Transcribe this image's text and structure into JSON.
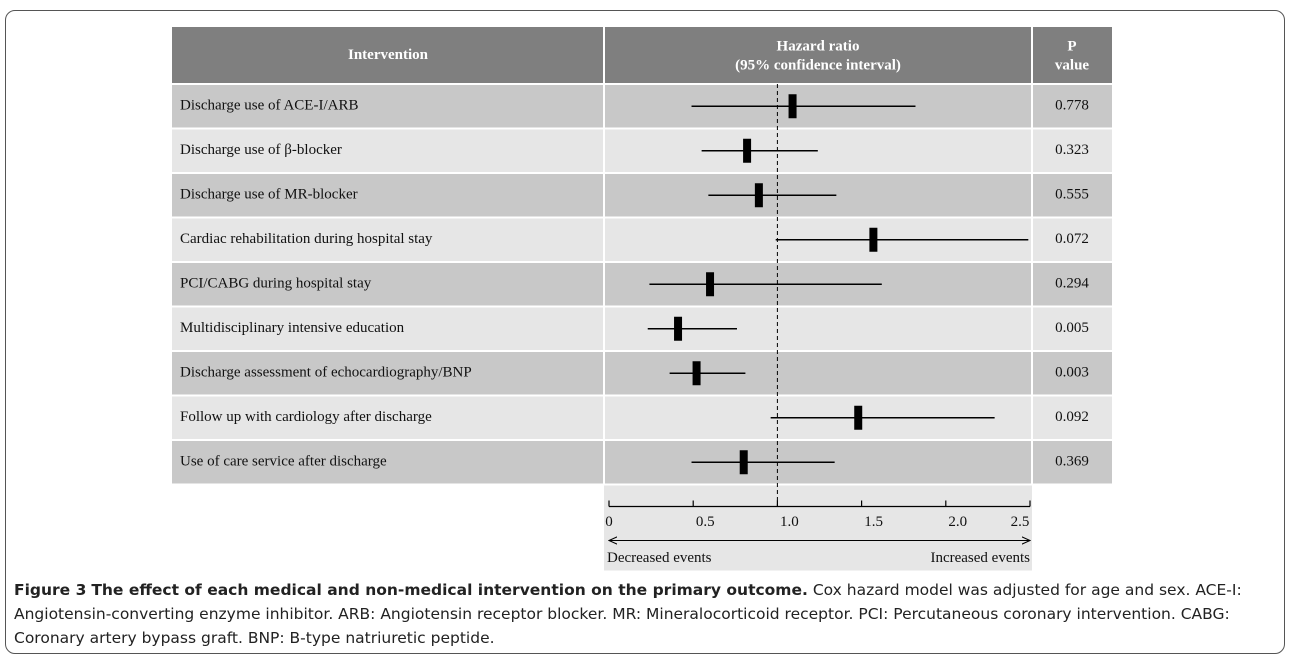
{
  "chart_data": {
    "type": "forest",
    "headers": [
      "Intervention",
      "Hazard ratio",
      "(95% confidence interval)",
      "P",
      "value"
    ],
    "categories": [
      "Discharge use of ACE-I/ARB",
      "Discharge use of β-blocker",
      "Discharge use of MR-blocker",
      "Cardiac rehabilitation during hospital stay",
      "PCI/CABG during hospital stay",
      "Multidisciplinary intensive education",
      "Discharge assessment of echocardiography/BNP",
      "Follow up with cardiology after discharge",
      "Use of care service after discharge"
    ],
    "values": [
      1.09,
      0.82,
      0.89,
      1.57,
      0.6,
      0.41,
      0.52,
      1.48,
      0.8
    ],
    "lower": [
      0.49,
      0.55,
      0.59,
      0.99,
      0.24,
      0.23,
      0.36,
      0.96,
      0.49
    ],
    "upper": [
      1.82,
      1.24,
      1.35,
      2.49,
      1.62,
      0.76,
      0.81,
      2.29,
      1.34
    ],
    "p_values": [
      0.778,
      0.323,
      0.555,
      0.072,
      0.294,
      0.005,
      0.003,
      0.092,
      0.369
    ],
    "xlim": [
      0,
      2.5
    ],
    "xticks": [
      0,
      0.5,
      {
        "value": 1,
        "label": "1.0"
      },
      1.5,
      {
        "value": 2,
        "label": "2.0"
      },
      2.5
    ],
    "reference_line": 1,
    "xlabel_left": "Decreased events",
    "xlabel_right": "Increased events",
    "color": "#000000",
    "caption_label": "Figure 3",
    "caption_title": "The effect of each medical and non-medical intervention on the primary outcome.",
    "caption_text": "Cox hazard model was adjusted for age and sex. ACE-I: Angiotensin-converting enzyme inhibitor. ARB: Angiotensin receptor blocker. MR: Mineralocorticoid receptor. PCI: Percutaneous coronary intervention. CABG: Coronary artery bypass graft. BNP: B-type natriuretic peptide."
  }
}
